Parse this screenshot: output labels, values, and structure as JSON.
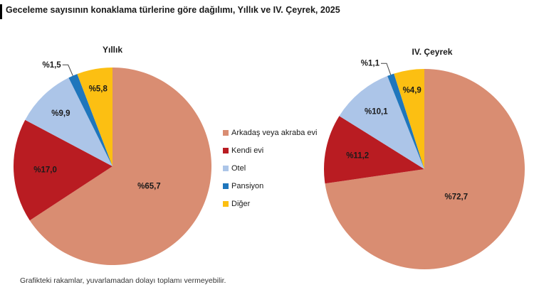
{
  "title": "Geceleme sayısının konaklama türlerine göre dağılımı, Yıllık ve IV. Çeyrek, 2025",
  "footnote": "Grafikteki rakamlar, yuvarlamadan dolayı toplamı vermeyebilir.",
  "keys": [
    "arkadas-veya-akraba-evi",
    "kendi-evi",
    "otel",
    "pansiyon",
    "diger"
  ],
  "colors": {
    "arkadas_veya_akraba_evi": "#D98D72",
    "kendi_evi": "#B91C22",
    "otel": "#ACC5E8",
    "pansiyon": "#1F76BC",
    "diger": "#FCBF12",
    "label_text": "#1A1A1A",
    "background": "#FFFFFF"
  },
  "legend": {
    "position": "center between pies",
    "items": [
      {
        "label": "Arkadaş veya akraba evi",
        "color": "#D98D72"
      },
      {
        "label": "Kendi evi",
        "color": "#B91C22"
      },
      {
        "label": "Otel",
        "color": "#ACC5E8"
      },
      {
        "label": "Pansiyon",
        "color": "#1F76BC"
      },
      {
        "label": "Diğer",
        "color": "#FCBF12"
      }
    ]
  },
  "chart_data": [
    {
      "type": "pie",
      "title": "Yıllık",
      "categories": [
        "Arkadaş veya akraba evi",
        "Kendi evi",
        "Otel",
        "Pansiyon",
        "Diğer"
      ],
      "values": [
        65.7,
        17.0,
        9.9,
        1.5,
        5.8
      ],
      "labels": [
        "%65,7",
        "%17,0",
        "%9,9",
        "%1,5",
        "%5,8"
      ],
      "colors": [
        "#D98D72",
        "#B91C22",
        "#ACC5E8",
        "#1F76BC",
        "#FCBF12"
      ],
      "start_angle_deg": 0,
      "direction": "clockwise",
      "radius_px": 139
    },
    {
      "type": "pie",
      "title": "IV. Çeyrek",
      "categories": [
        "Arkadaş veya akraba evi",
        "Kendi evi",
        "Otel",
        "Pansiyon",
        "Diğer"
      ],
      "values": [
        72.7,
        11.2,
        10.1,
        1.1,
        4.9
      ],
      "labels": [
        "%72,7",
        "%11,2",
        "%10,1",
        "%1,1",
        "%4,9"
      ],
      "colors": [
        "#D98D72",
        "#B91C22",
        "#ACC5E8",
        "#1F76BC",
        "#FCBF12"
      ],
      "start_angle_deg": 0,
      "direction": "clockwise",
      "radius_px": 141
    }
  ]
}
